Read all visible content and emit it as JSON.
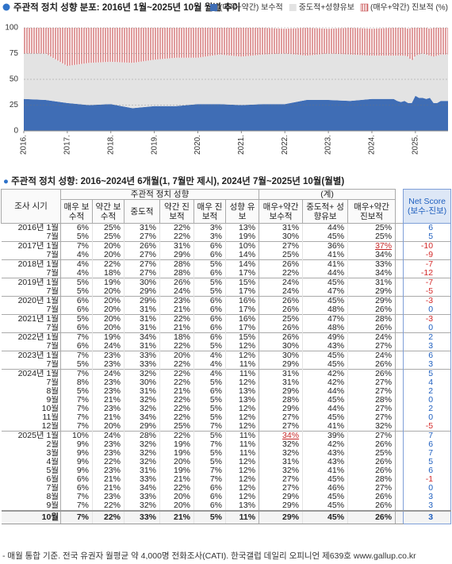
{
  "chart_data": {
    "type": "stacked_area",
    "title": "주관적 정치 성향 분포: 2016년 1월~2025년 10월 월별 추이",
    "x": [
      2016,
      2016.5,
      2017,
      2017.5,
      2018,
      2018.5,
      2019,
      2019.5,
      2020,
      2020.5,
      2021,
      2021.5,
      2022,
      2022.5,
      2023,
      2023.5,
      2024,
      2024.5,
      2024.583,
      2024.667,
      2024.75,
      2024.833,
      2024.917,
      2025,
      2025.083,
      2025.167,
      2025.25,
      2025.333,
      2025.417,
      2025.5,
      2025.583,
      2025.667,
      2025.75
    ],
    "series": [
      {
        "name": "(매우+약간) 보수적",
        "color": "#3f6db5",
        "values": [
          31,
          30,
          27,
          25,
          26,
          22,
          24,
          24,
          26,
          26,
          25,
          26,
          26,
          30,
          30,
          29,
          31,
          31,
          29,
          28,
          29,
          27,
          27,
          34,
          32,
          32,
          31,
          32,
          27,
          27,
          29,
          29,
          29
        ]
      },
      {
        "name": "중도적+성향유보",
        "color": "#e3e3e3",
        "values": [
          44,
          45,
          36,
          41,
          41,
          44,
          45,
          47,
          45,
          48,
          47,
          48,
          49,
          43,
          45,
          45,
          42,
          42,
          44,
          45,
          44,
          45,
          41,
          39,
          42,
          43,
          43,
          41,
          45,
          46,
          45,
          45,
          45
        ]
      },
      {
        "name": "(매우+약간) 진보적 (%)",
        "color": "#c0393b",
        "fill_style": "stripes",
        "values": [
          25,
          25,
          37,
          34,
          33,
          34,
          31,
          29,
          29,
          26,
          28,
          26,
          24,
          27,
          24,
          26,
          26,
          27,
          27,
          28,
          27,
          27,
          32,
          27,
          26,
          25,
          26,
          26,
          28,
          27,
          26,
          26,
          26
        ]
      }
    ],
    "xlim": [
      2016,
      2025.75
    ],
    "xticks": [
      {
        "value": 2016,
        "label": "2016."
      },
      {
        "value": 2017,
        "label": "2017."
      },
      {
        "value": 2018,
        "label": "2018."
      },
      {
        "value": 2019,
        "label": "2019."
      },
      {
        "value": 2020,
        "label": "2020."
      },
      {
        "value": 2021,
        "label": "2021."
      },
      {
        "value": 2022,
        "label": "2022."
      },
      {
        "value": 2023,
        "label": "2023."
      },
      {
        "value": 2024,
        "label": "2024."
      },
      {
        "value": 2025,
        "label": "2025."
      }
    ],
    "ylim": [
      0,
      100
    ],
    "yticks": [
      0,
      25,
      50,
      75,
      100
    ],
    "grid": true,
    "legend": "top-right"
  },
  "table": {
    "title": "주관적 정치 성향: 2016~2024년 6개월(1, 7월만 제시), 2024년 7월~2025년 10월(월별)",
    "period_header": "조사 시기",
    "group_header": "주관적 정치 성향",
    "sum_header": "(계)",
    "net_header": "Net Score (보수-진보)",
    "columns": [
      "매우 보수적",
      "약간 보수적",
      "중도적",
      "약간 진보적",
      "매우 진보적",
      "성향 유보",
      "매우+약간 보수적",
      "중도적+ 성향유보",
      "매우+약간 진보적"
    ],
    "rows": [
      {
        "period": "2016년 1월",
        "cells": [
          "6%",
          "25%",
          "31%",
          "22%",
          "3%",
          "13%",
          "31%",
          "44%",
          "25%"
        ],
        "net": 6
      },
      {
        "period": "7월",
        "cells": [
          "5%",
          "25%",
          "27%",
          "22%",
          "3%",
          "19%",
          "30%",
          "45%",
          "25%"
        ],
        "net": 5
      },
      {
        "period": "2017년 1월",
        "cells": [
          "7%",
          "20%",
          "26%",
          "31%",
          "6%",
          "10%",
          "27%",
          "36%",
          {
            "text": "37%",
            "highlight": true
          }
        ],
        "net": -10
      },
      {
        "period": "7월",
        "cells": [
          "4%",
          "20%",
          "27%",
          "29%",
          "6%",
          "14%",
          "25%",
          "41%",
          "34%"
        ],
        "net": -9
      },
      {
        "period": "2018년 1월",
        "cells": [
          "4%",
          "22%",
          "27%",
          "28%",
          "5%",
          "14%",
          "26%",
          "41%",
          "33%"
        ],
        "net": -7
      },
      {
        "period": "7월",
        "cells": [
          "4%",
          "18%",
          "27%",
          "28%",
          "6%",
          "17%",
          "22%",
          "44%",
          "34%"
        ],
        "net": -12
      },
      {
        "period": "2019년 1월",
        "cells": [
          "5%",
          "19%",
          "30%",
          "26%",
          "5%",
          "15%",
          "24%",
          "45%",
          "31%"
        ],
        "net": -7
      },
      {
        "period": "7월",
        "cells": [
          "5%",
          "20%",
          "29%",
          "24%",
          "5%",
          "17%",
          "24%",
          "47%",
          "29%"
        ],
        "net": -5
      },
      {
        "period": "2020년 1월",
        "cells": [
          "6%",
          "20%",
          "29%",
          "23%",
          "6%",
          "16%",
          "26%",
          "45%",
          "29%"
        ],
        "net": -3
      },
      {
        "period": "7월",
        "cells": [
          "6%",
          "20%",
          "31%",
          "21%",
          "6%",
          "17%",
          "26%",
          "48%",
          "26%"
        ],
        "net": 0
      },
      {
        "period": "2021년 1월",
        "cells": [
          "5%",
          "20%",
          "31%",
          "22%",
          "6%",
          "16%",
          "25%",
          "47%",
          "28%"
        ],
        "net": -3
      },
      {
        "period": "7월",
        "cells": [
          "6%",
          "20%",
          "31%",
          "21%",
          "6%",
          "17%",
          "26%",
          "48%",
          "26%"
        ],
        "net": 0
      },
      {
        "period": "2022년 1월",
        "cells": [
          "7%",
          "19%",
          "34%",
          "18%",
          "6%",
          "15%",
          "26%",
          "49%",
          "24%"
        ],
        "net": 2
      },
      {
        "period": "7월",
        "cells": [
          "6%",
          "24%",
          "31%",
          "22%",
          "5%",
          "12%",
          "30%",
          "43%",
          "27%"
        ],
        "net": 3
      },
      {
        "period": "2023년 1월",
        "cells": [
          "7%",
          "23%",
          "33%",
          "20%",
          "4%",
          "12%",
          "30%",
          "45%",
          "24%"
        ],
        "net": 6
      },
      {
        "period": "7월",
        "cells": [
          "5%",
          "23%",
          "33%",
          "22%",
          "4%",
          "11%",
          "29%",
          "45%",
          "26%"
        ],
        "net": 3
      },
      {
        "period": "2024년 1월",
        "cells": [
          "7%",
          "24%",
          "32%",
          "22%",
          "4%",
          "11%",
          "31%",
          "42%",
          "26%"
        ],
        "net": 5
      },
      {
        "period": "7월",
        "cells": [
          "8%",
          "23%",
          "30%",
          "22%",
          "5%",
          "12%",
          "31%",
          "42%",
          "27%"
        ],
        "net": 4
      },
      {
        "period": "8월",
        "cells": [
          "5%",
          "23%",
          "31%",
          "21%",
          "6%",
          "13%",
          "29%",
          "44%",
          "27%"
        ],
        "net": 2
      },
      {
        "period": "9월",
        "cells": [
          "7%",
          "21%",
          "32%",
          "22%",
          "5%",
          "13%",
          "28%",
          "45%",
          "28%"
        ],
        "net": 0
      },
      {
        "period": "10월",
        "cells": [
          "7%",
          "23%",
          "32%",
          "22%",
          "5%",
          "12%",
          "29%",
          "44%",
          "27%"
        ],
        "net": 2
      },
      {
        "period": "11월",
        "cells": [
          "7%",
          "21%",
          "34%",
          "22%",
          "5%",
          "12%",
          "27%",
          "45%",
          "27%"
        ],
        "net": 0
      },
      {
        "period": "12월",
        "cells": [
          "7%",
          "20%",
          "29%",
          "25%",
          "7%",
          "12%",
          "27%",
          "41%",
          "32%"
        ],
        "net": -5
      },
      {
        "period": "2025년 1월",
        "cells": [
          "10%",
          "24%",
          "28%",
          "22%",
          "5%",
          "11%",
          {
            "text": "34%",
            "highlight": true
          },
          "39%",
          "27%"
        ],
        "net": 7
      },
      {
        "period": "2월",
        "cells": [
          "9%",
          "23%",
          "32%",
          "19%",
          "7%",
          "11%",
          "32%",
          "42%",
          "26%"
        ],
        "net": 6
      },
      {
        "period": "3월",
        "cells": [
          "9%",
          "23%",
          "32%",
          "19%",
          "5%",
          "11%",
          "32%",
          "43%",
          "25%"
        ],
        "net": 7
      },
      {
        "period": "4월",
        "cells": [
          "9%",
          "22%",
          "32%",
          "20%",
          "5%",
          "12%",
          "31%",
          "43%",
          "26%"
        ],
        "net": 5
      },
      {
        "period": "5월",
        "cells": [
          "9%",
          "23%",
          "31%",
          "19%",
          "7%",
          "12%",
          "32%",
          "41%",
          "26%"
        ],
        "net": 6
      },
      {
        "period": "6월",
        "cells": [
          "6%",
          "21%",
          "33%",
          "21%",
          "7%",
          "12%",
          "27%",
          "45%",
          "28%"
        ],
        "net": -1
      },
      {
        "period": "7월",
        "cells": [
          "6%",
          "21%",
          "34%",
          "22%",
          "6%",
          "12%",
          "27%",
          "46%",
          "27%"
        ],
        "net": 0
      },
      {
        "period": "8월",
        "cells": [
          "7%",
          "23%",
          "33%",
          "20%",
          "6%",
          "12%",
          "29%",
          "45%",
          "26%"
        ],
        "net": 3
      },
      {
        "period": "9월",
        "cells": [
          "7%",
          "22%",
          "32%",
          "20%",
          "6%",
          "13%",
          "29%",
          "45%",
          "26%"
        ],
        "net": 3
      },
      {
        "period": "10월",
        "cells": [
          "7%",
          "22%",
          "33%",
          "21%",
          "5%",
          "11%",
          "29%",
          "45%",
          "26%"
        ],
        "net": 3,
        "bold": true
      }
    ]
  },
  "footer": "- 매월 통합 기준. 전국 유권자 월평균 약 4,000명 전화조사(CATI). 한국갤럽 데일리 오피니언 제639호 www.gallup.co.kr"
}
